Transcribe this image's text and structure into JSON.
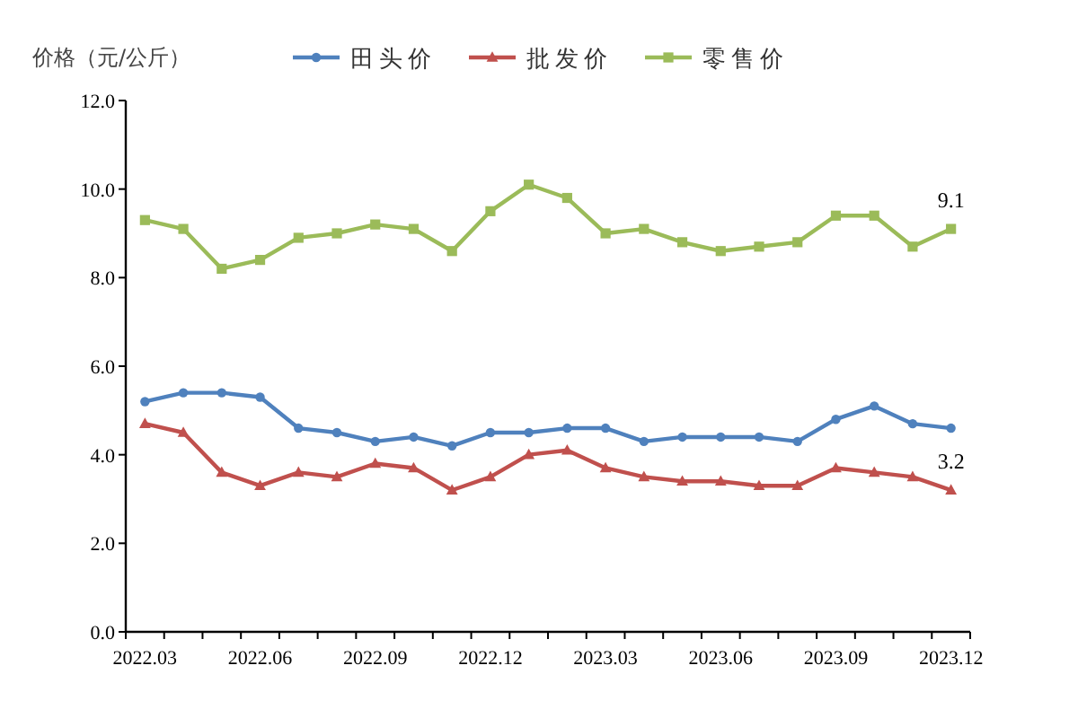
{
  "chart_data": {
    "type": "line",
    "ylabel": "价格（元/公斤）",
    "legend": "top",
    "grid": false,
    "categories": [
      "2022.03",
      null,
      null,
      "2022.06",
      null,
      null,
      "2022.09",
      null,
      null,
      "2022.12",
      null,
      null,
      "2023.03",
      null,
      null,
      "2023.06",
      null,
      null,
      "2023.09",
      null,
      null,
      "2023.12"
    ],
    "ylim": [
      0,
      12
    ],
    "yticks": [
      {
        "value": 0,
        "label": "0.0"
      },
      {
        "value": 2,
        "label": "2.0"
      },
      {
        "value": 4,
        "label": "4.0"
      },
      {
        "value": 6,
        "label": "6.0"
      },
      {
        "value": 8,
        "label": "8.0"
      },
      {
        "value": 10,
        "label": "10.0"
      },
      {
        "value": 12,
        "label": "12.0"
      }
    ],
    "series": [
      {
        "name": "田头价",
        "color": "#4f81bd",
        "marker": "circle",
        "values": [
          5.2,
          5.4,
          5.4,
          5.3,
          4.6,
          4.5,
          4.3,
          4.4,
          4.2,
          4.5,
          4.5,
          4.6,
          4.6,
          4.3,
          4.4,
          4.4,
          4.4,
          4.3,
          4.8,
          5.1,
          4.7,
          4.6
        ]
      },
      {
        "name": "批发价",
        "color": "#c0504d",
        "marker": "triangle",
        "values": [
          4.7,
          4.5,
          3.6,
          3.3,
          3.6,
          3.5,
          3.8,
          3.7,
          3.2,
          3.5,
          4.0,
          4.1,
          3.7,
          3.5,
          3.4,
          3.4,
          3.3,
          3.3,
          3.7,
          3.6,
          3.5,
          3.2
        ],
        "value_labels": [
          null,
          null,
          null,
          null,
          null,
          null,
          null,
          null,
          null,
          null,
          null,
          null,
          null,
          null,
          null,
          null,
          null,
          null,
          null,
          null,
          null,
          "3.2"
        ]
      },
      {
        "name": "零售价",
        "color": "#9bbb59",
        "marker": "square",
        "values": [
          9.3,
          9.1,
          8.2,
          8.4,
          8.9,
          9.0,
          9.2,
          9.1,
          8.6,
          9.5,
          10.1,
          9.8,
          9.0,
          9.1,
          8.8,
          8.6,
          8.7,
          8.8,
          9.4,
          9.4,
          8.7,
          9.1
        ],
        "value_labels": [
          null,
          null,
          null,
          null,
          null,
          null,
          null,
          null,
          null,
          null,
          null,
          null,
          null,
          null,
          null,
          null,
          null,
          null,
          null,
          null,
          null,
          "9.1"
        ]
      }
    ]
  }
}
